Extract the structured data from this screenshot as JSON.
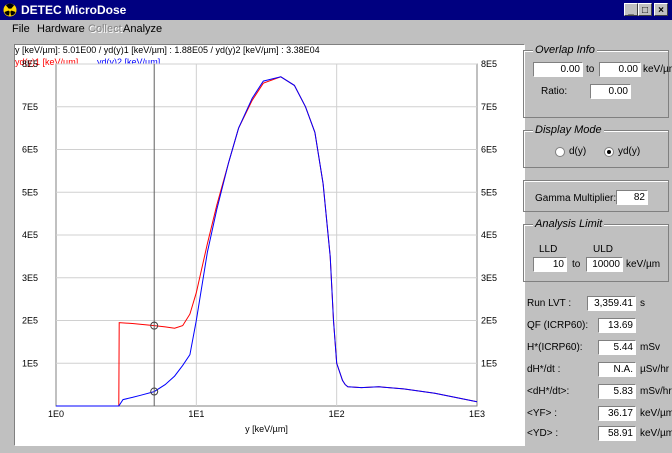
{
  "window": {
    "title": "DETEC MicroDose",
    "minimize": "_",
    "maximize": "□",
    "close": "×"
  },
  "menu": [
    {
      "label": "File",
      "enabled": true
    },
    {
      "label": "Hardware",
      "enabled": true
    },
    {
      "label": "Collect",
      "enabled": false
    },
    {
      "label": "Analyze",
      "enabled": true
    }
  ],
  "readout": "y [keV/µm]: 5.01E00  /  yd(y)1 [keV/µm] : 1.88E05  /  yd(y)2 [keV/µm] : 3.38E04",
  "colors": {
    "series1": "#ff0000",
    "series2": "#0000ff"
  },
  "chart_data": {
    "type": "line",
    "xlabel": "y [keV/µm]",
    "xscale": "log",
    "xlim": [
      1,
      1000
    ],
    "ylim": [
      0,
      800000
    ],
    "xticks": [
      "1E0",
      "1E1",
      "1E2",
      "1E3"
    ],
    "yticks": [
      "1E5",
      "2E5",
      "3E5",
      "4E5",
      "5E5",
      "6E5",
      "7E5",
      "8E5"
    ],
    "cursor_x": 5.01,
    "series": [
      {
        "name": "yd(y)1 [keV/µm]",
        "x": [
          1,
          2.8,
          2.82,
          3.5,
          5.01,
          6,
          7,
          8,
          9,
          10,
          12,
          14,
          17,
          20,
          25,
          30,
          40,
          50,
          60,
          70,
          80,
          90,
          95,
          100,
          110,
          115,
          120,
          150,
          200,
          300,
          500,
          700,
          1000
        ],
        "y": [
          0,
          0,
          195000,
          193000,
          188000,
          185000,
          182000,
          188000,
          215000,
          265000,
          380000,
          470000,
          570000,
          650000,
          715000,
          755000,
          770000,
          750000,
          700000,
          640000,
          520000,
          350000,
          200000,
          100000,
          60000,
          50000,
          45000,
          43000,
          45000,
          40000,
          30000,
          20000,
          10000
        ]
      },
      {
        "name": "yd(y)2 [keV/µm]",
        "x": [
          1,
          2.8,
          3,
          3.5,
          4,
          5.01,
          6,
          7,
          8,
          9,
          10,
          12,
          14,
          17,
          20,
          25,
          30,
          40,
          50,
          60,
          70,
          80,
          90,
          95,
          100,
          110,
          115,
          120,
          150,
          200,
          300,
          500,
          700,
          1000
        ],
        "y": [
          0,
          0,
          15000,
          20000,
          25000,
          33800,
          50000,
          70000,
          95000,
          120000,
          200000,
          360000,
          460000,
          570000,
          650000,
          720000,
          760000,
          770000,
          750000,
          700000,
          640000,
          520000,
          350000,
          200000,
          100000,
          60000,
          50000,
          45000,
          43000,
          45000,
          40000,
          30000,
          20000,
          10000
        ]
      }
    ]
  },
  "overlap": {
    "title": "Overlap Info",
    "from": "0.00",
    "to_label": "to",
    "to": "0.00",
    "unit": "keV/µm",
    "ratio_label": "Ratio:",
    "ratio": "0.00"
  },
  "display_mode": {
    "title": "Display Mode",
    "opt1": "d(y)",
    "opt2": "yd(y)",
    "selected": "yd(y)"
  },
  "gamma": {
    "label": "Gamma Multiplier:",
    "value": "82"
  },
  "analysis": {
    "title": "Analysis Limit",
    "lld_label": "LLD",
    "uld_label": "ULD",
    "lld": "10",
    "to_label": "to",
    "uld": "10000",
    "unit": "keV/µm"
  },
  "stats": [
    {
      "label": "Run LVT :",
      "value": "3,359.41",
      "unit": "s"
    },
    {
      "label": "QF (ICRP60):",
      "value": "13.69",
      "unit": ""
    },
    {
      "label": "H*(ICRP60):",
      "value": "5.44",
      "unit": "mSv"
    },
    {
      "label": "dH*/dt :",
      "value": "N.A.",
      "unit": "µSv/hr"
    },
    {
      "label": "<dH*/dt>:",
      "value": "5.83",
      "unit": "mSv/hr"
    },
    {
      "label": "<YF> :",
      "value": "36.17",
      "unit": "keV/µm"
    },
    {
      "label": "<YD> :",
      "value": "58.91",
      "unit": "keV/µm"
    }
  ]
}
